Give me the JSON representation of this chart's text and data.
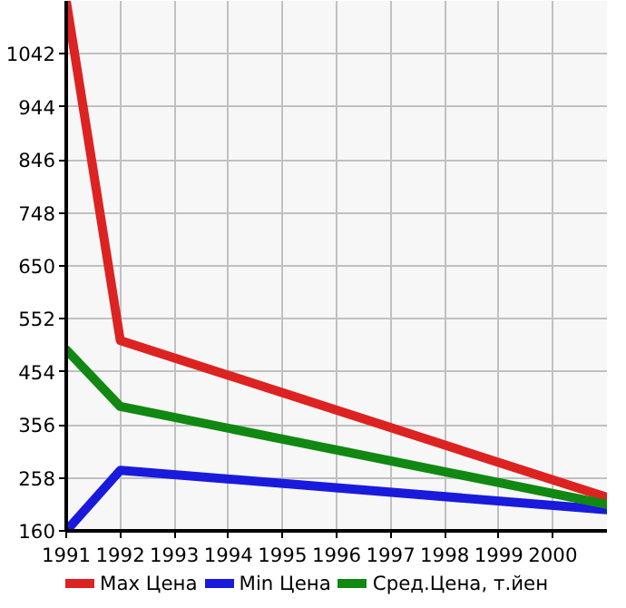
{
  "chart_data": {
    "type": "line",
    "x": [
      1991,
      1992,
      2001
    ],
    "series": [
      {
        "name": "Max Цена",
        "color": "#dd2222",
        "values": [
          1140,
          512,
          222
        ]
      },
      {
        "name": "Min Цена",
        "color": "#1a1add",
        "values": [
          160,
          272,
          199
        ]
      },
      {
        "name": "Сред.Цена, т.йен",
        "color": "#118811",
        "values": [
          495,
          390,
          209
        ]
      }
    ],
    "xlim": [
      1991,
      2001
    ],
    "ylim": [
      160,
      1140
    ],
    "xticks": [
      1991,
      1992,
      1993,
      1994,
      1995,
      1996,
      1997,
      1998,
      1999,
      2000
    ],
    "yticks": [
      160,
      258,
      356,
      454,
      552,
      650,
      748,
      846,
      944,
      1042
    ],
    "grid": true,
    "legend": "bottom",
    "marker": "none",
    "line_style": "solid"
  }
}
